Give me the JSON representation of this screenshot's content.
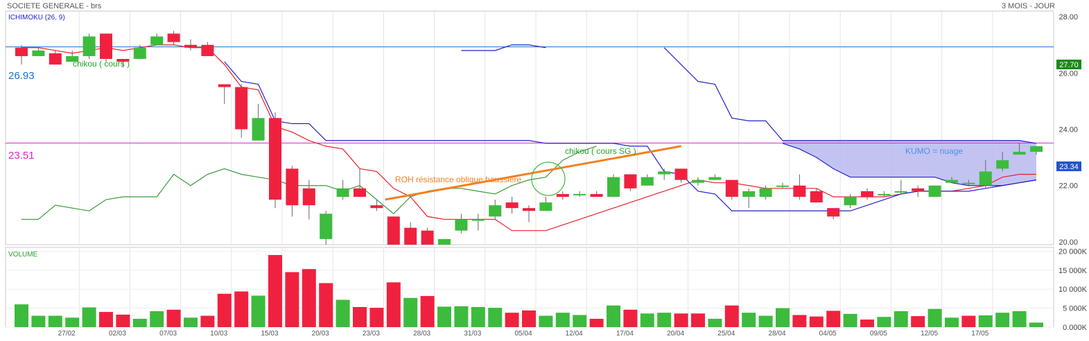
{
  "header": {
    "title": "SOCIETE GENERALE - brs",
    "period": "3 MOIS - JOUR"
  },
  "indicator_label": "ICHIMOKU (26, 9)",
  "volume_label": "VOLUME",
  "colors": {
    "up": "#3dbb3d",
    "down": "#f0213f",
    "tenkan": "#e8202a",
    "kijun": "#2222cc",
    "chikou": "#3a9a3a",
    "kumo_fill": "#b8b8f0",
    "resistance": "#f28022",
    "level_upper": "#1a6fd0",
    "level_lower": "#e020d0",
    "last_price_bg": "#1a8a1a",
    "cross_price_bg": "#2255cc"
  },
  "annotations": {
    "chikou_cours": "chikou  ( cours )",
    "chikou_cours_sg": "chikou ( cours SG  )",
    "roh": "ROH résistance oblique haussière",
    "kumo": "KUMO  = nuage",
    "level_upper": "26.93",
    "level_lower": "23.51",
    "last_price": "27.70",
    "current_price": "23.34"
  },
  "chart_data": [
    {
      "type": "candlestick",
      "title": "ICHIMOKU (26, 9)",
      "ylim": [
        19.9,
        28.2
      ],
      "y_ticks": [
        "28.00",
        "26.00",
        "24.00",
        "22.00",
        "20.00"
      ],
      "y_tick_values": [
        28,
        26,
        24,
        22,
        20
      ],
      "x_tick_labels": [
        "27/02",
        "02/03",
        "07/03",
        "10/03",
        "15/03",
        "20/03",
        "23/03",
        "28/03",
        "31/03",
        "05/04",
        "12/04",
        "17/04",
        "20/04",
        "25/04",
        "28/04",
        "04/05",
        "09/05",
        "12/05",
        "17/05"
      ],
      "x_tick_index": [
        3,
        6,
        9,
        12,
        15,
        18,
        21,
        24,
        27,
        30,
        33,
        36,
        39,
        42,
        45,
        48,
        51,
        54,
        57
      ],
      "candles": [
        {
          "o": 26.9,
          "h": 27.0,
          "l": 26.3,
          "c": 26.6
        },
        {
          "o": 26.6,
          "h": 26.9,
          "l": 26.6,
          "c": 26.8
        },
        {
          "o": 26.7,
          "h": 26.8,
          "l": 26.3,
          "c": 26.3
        },
        {
          "o": 26.4,
          "h": 26.8,
          "l": 26.4,
          "c": 26.6
        },
        {
          "o": 26.6,
          "h": 27.4,
          "l": 26.5,
          "c": 27.3
        },
        {
          "o": 27.4,
          "h": 27.4,
          "l": 26.4,
          "c": 26.5
        },
        {
          "o": 26.5,
          "h": 26.5,
          "l": 26.2,
          "c": 26.4
        },
        {
          "o": 26.5,
          "h": 27.0,
          "l": 26.5,
          "c": 26.9
        },
        {
          "o": 27.0,
          "h": 27.4,
          "l": 27.0,
          "c": 27.3
        },
        {
          "o": 27.4,
          "h": 27.5,
          "l": 27.0,
          "c": 27.1
        },
        {
          "o": 27.0,
          "h": 27.2,
          "l": 26.8,
          "c": 26.9
        },
        {
          "o": 27.0,
          "h": 27.1,
          "l": 26.6,
          "c": 26.6
        },
        {
          "o": 25.6,
          "h": 25.6,
          "l": 24.9,
          "c": 25.5
        },
        {
          "o": 25.5,
          "h": 25.6,
          "l": 23.7,
          "c": 24.0
        },
        {
          "o": 23.6,
          "h": 24.9,
          "l": 23.6,
          "c": 24.4
        },
        {
          "o": 24.4,
          "h": 24.6,
          "l": 21.2,
          "c": 21.5
        },
        {
          "o": 22.6,
          "h": 22.7,
          "l": 20.9,
          "c": 21.3
        },
        {
          "o": 21.9,
          "h": 22.2,
          "l": 20.8,
          "c": 21.3
        },
        {
          "o": 20.1,
          "h": 21.1,
          "l": 19.9,
          "c": 21.0
        },
        {
          "o": 21.6,
          "h": 22.2,
          "l": 21.5,
          "c": 21.9
        },
        {
          "o": 21.9,
          "h": 22.6,
          "l": 21.6,
          "c": 21.6
        },
        {
          "o": 21.3,
          "h": 21.5,
          "l": 21.1,
          "c": 21.2
        },
        {
          "o": 20.9,
          "h": 20.9,
          "l": 19.9,
          "c": 19.9
        },
        {
          "o": 20.5,
          "h": 20.7,
          "l": 19.9,
          "c": 19.9
        },
        {
          "o": 20.4,
          "h": 20.5,
          "l": 19.9,
          "c": 19.9
        },
        {
          "o": 19.9,
          "h": 20.1,
          "l": 19.9,
          "c": 20.1
        },
        {
          "o": 20.4,
          "h": 21.0,
          "l": 20.3,
          "c": 20.8
        },
        {
          "o": 20.8,
          "h": 21.0,
          "l": 20.4,
          "c": 20.8
        },
        {
          "o": 20.9,
          "h": 21.5,
          "l": 20.8,
          "c": 21.3
        },
        {
          "o": 21.4,
          "h": 21.6,
          "l": 21.0,
          "c": 21.2
        },
        {
          "o": 21.2,
          "h": 21.3,
          "l": 20.7,
          "c": 21.1
        },
        {
          "o": 21.1,
          "h": 21.6,
          "l": 21.1,
          "c": 21.4
        },
        {
          "o": 21.7,
          "h": 21.8,
          "l": 21.5,
          "c": 21.6
        },
        {
          "o": 21.7,
          "h": 21.8,
          "l": 21.6,
          "c": 21.7
        },
        {
          "o": 21.7,
          "h": 21.8,
          "l": 21.6,
          "c": 21.6
        },
        {
          "o": 21.6,
          "h": 22.4,
          "l": 21.6,
          "c": 22.3
        },
        {
          "o": 22.4,
          "h": 22.4,
          "l": 21.8,
          "c": 21.9
        },
        {
          "o": 22.0,
          "h": 22.4,
          "l": 22.0,
          "c": 22.3
        },
        {
          "o": 22.4,
          "h": 22.6,
          "l": 22.2,
          "c": 22.5
        },
        {
          "o": 22.6,
          "h": 22.6,
          "l": 22.1,
          "c": 22.2
        },
        {
          "o": 22.1,
          "h": 22.3,
          "l": 22.0,
          "c": 22.2
        },
        {
          "o": 22.2,
          "h": 22.4,
          "l": 22.2,
          "c": 22.3
        },
        {
          "o": 22.2,
          "h": 22.2,
          "l": 21.5,
          "c": 21.6
        },
        {
          "o": 21.6,
          "h": 21.9,
          "l": 21.2,
          "c": 21.8
        },
        {
          "o": 21.6,
          "h": 22.0,
          "l": 21.5,
          "c": 21.9
        },
        {
          "o": 22.0,
          "h": 22.1,
          "l": 21.9,
          "c": 22.0
        },
        {
          "o": 22.0,
          "h": 22.4,
          "l": 21.5,
          "c": 21.6
        },
        {
          "o": 21.8,
          "h": 21.9,
          "l": 21.4,
          "c": 21.4
        },
        {
          "o": 21.2,
          "h": 21.2,
          "l": 20.8,
          "c": 20.9
        },
        {
          "o": 21.3,
          "h": 21.7,
          "l": 21.2,
          "c": 21.6
        },
        {
          "o": 21.8,
          "h": 21.9,
          "l": 21.5,
          "c": 21.6
        },
        {
          "o": 21.7,
          "h": 21.8,
          "l": 21.6,
          "c": 21.7
        },
        {
          "o": 21.8,
          "h": 22.2,
          "l": 21.7,
          "c": 21.8
        },
        {
          "o": 21.9,
          "h": 22.0,
          "l": 21.6,
          "c": 21.8
        },
        {
          "o": 21.6,
          "h": 22.0,
          "l": 21.6,
          "c": 22.0
        },
        {
          "o": 22.1,
          "h": 22.3,
          "l": 22.1,
          "c": 22.2
        },
        {
          "o": 22.1,
          "h": 22.2,
          "l": 22.0,
          "c": 22.1
        },
        {
          "o": 22.0,
          "h": 22.9,
          "l": 21.9,
          "c": 22.5
        },
        {
          "o": 22.6,
          "h": 23.2,
          "l": 22.5,
          "c": 22.9
        },
        {
          "o": 23.1,
          "h": 23.5,
          "l": 23.1,
          "c": 23.2
        },
        {
          "o": 23.2,
          "h": 23.4,
          "l": 23.1,
          "c": 23.4
        }
      ],
      "series": [
        {
          "name": "tenkan",
          "values": [
            26.9,
            26.9,
            26.8,
            26.7,
            26.8,
            26.9,
            26.8,
            26.9,
            27.0,
            27.0,
            26.9,
            26.9,
            26.3,
            25.5,
            25.4,
            24.1,
            23.9,
            23.6,
            23.4,
            23.3,
            22.6,
            22.5,
            21.9,
            21.6,
            20.9,
            20.8,
            20.8,
            20.8,
            20.8,
            20.4,
            20.4,
            20.4,
            20.6,
            20.8,
            21.0,
            21.2,
            21.4,
            21.6,
            21.8,
            22.0,
            22.2,
            22.1,
            22.1,
            22.0,
            21.9,
            21.9,
            21.9,
            21.9,
            21.6,
            21.6,
            21.6,
            21.6,
            21.7,
            21.8,
            21.8,
            21.8,
            21.9,
            22.0,
            22.3,
            22.4,
            22.4
          ]
        },
        {
          "name": "kijun",
          "values": [
            null,
            null,
            null,
            null,
            null,
            null,
            null,
            null,
            null,
            null,
            null,
            null,
            26.4,
            25.7,
            25.6,
            24.3,
            24.2,
            24.2,
            23.6,
            23.6,
            23.6,
            23.6,
            23.6,
            23.6,
            23.6,
            23.6,
            23.6,
            23.6,
            23.6,
            23.6,
            23.6,
            23.5,
            23.5,
            23.5,
            23.5,
            23.5,
            23.4,
            23.4,
            22.5,
            22.4,
            21.8,
            21.7,
            21.1,
            21.1,
            21.1,
            21.1,
            21.1,
            21.1,
            21.1,
            21.1,
            21.3,
            21.5,
            21.7,
            21.8,
            21.8,
            21.8,
            21.8,
            21.9,
            22.0,
            22.1,
            22.2
          ]
        },
        {
          "name": "chikou",
          "values": [
            20.8,
            20.8,
            21.3,
            21.2,
            21.1,
            21.5,
            21.6,
            21.6,
            21.6,
            22.4,
            22.0,
            22.4,
            22.6,
            22.4,
            22.3,
            22.2,
            22.0,
            22.0,
            22.0,
            21.8,
            22.0,
            21.5,
            21.0,
            21.6,
            21.8,
            21.9,
            21.9,
            21.8,
            21.7,
            22.0,
            22.2,
            22.3,
            22.9,
            23.2,
            23.4
          ]
        },
        {
          "name": "ssa",
          "values": [
            null,
            null,
            null,
            null,
            null,
            null,
            null,
            null,
            null,
            null,
            null,
            null,
            null,
            null,
            null,
            null,
            null,
            null,
            null,
            null,
            null,
            null,
            null,
            null,
            null,
            null,
            26.8,
            26.8,
            26.8,
            27.0,
            27.0,
            26.9,
            null,
            null,
            null,
            null,
            null,
            null,
            26.9,
            26.3,
            25.7,
            25.6,
            24.4,
            24.3,
            24.3,
            23.6,
            23.6,
            23.6,
            23.6,
            23.6,
            23.6,
            23.6,
            23.6,
            23.6,
            23.6,
            23.6,
            23.6,
            23.6,
            23.6,
            23.6,
            23.5
          ]
        },
        {
          "name": "ssb",
          "values": [
            null,
            null,
            null,
            null,
            null,
            null,
            null,
            null,
            null,
            null,
            null,
            null,
            null,
            null,
            null,
            null,
            null,
            null,
            null,
            null,
            null,
            null,
            null,
            null,
            null,
            null,
            null,
            null,
            null,
            null,
            null,
            null,
            null,
            null,
            null,
            null,
            null,
            null,
            null,
            null,
            null,
            null,
            null,
            null,
            null,
            23.5,
            23.3,
            23.0,
            22.6,
            22.3,
            22.3,
            22.3,
            22.3,
            22.3,
            22.3,
            22.1,
            22.0,
            22.0,
            22.0,
            22.1,
            22.2
          ]
        }
      ],
      "levels": [
        26.93,
        23.51
      ],
      "resistance_line": {
        "from": [
          21.5,
          21.5
        ],
        "to": [
          39,
          23.4
        ]
      }
    },
    {
      "type": "bar",
      "title": "VOLUME",
      "ylim": [
        0,
        21000
      ],
      "y_ticks": [
        "20 000K",
        "15 000K",
        "10 000K",
        "5 000K",
        "0.000K"
      ],
      "y_tick_values": [
        20000,
        15000,
        10000,
        5000,
        0
      ],
      "values": [
        6000,
        3000,
        3000,
        2500,
        5200,
        4000,
        3300,
        2200,
        4200,
        4600,
        2500,
        3000,
        8800,
        9400,
        8300,
        19000,
        14500,
        15300,
        11600,
        7200,
        5300,
        5100,
        11800,
        7700,
        8200,
        5400,
        5500,
        5300,
        5100,
        3800,
        4400,
        3000,
        3800,
        3200,
        2200,
        5700,
        4600,
        3600,
        3800,
        3600,
        3600,
        2200,
        5700,
        3800,
        3000,
        5000,
        3200,
        2800,
        4300,
        3500,
        2000,
        2700,
        4200,
        2900,
        4800,
        2500,
        3000,
        3100,
        3800,
        4200,
        1200
      ],
      "colors": [
        "up",
        "up",
        "up",
        "up",
        "up",
        "down",
        "down",
        "up",
        "up",
        "down",
        "up",
        "down",
        "down",
        "down",
        "up",
        "down",
        "down",
        "down",
        "down",
        "up",
        "down",
        "down",
        "down",
        "up",
        "down",
        "up",
        "up",
        "up",
        "up",
        "down",
        "down",
        "up",
        "up",
        "up",
        "down",
        "up",
        "down",
        "up",
        "up",
        "down",
        "down",
        "up",
        "down",
        "up",
        "up",
        "up",
        "down",
        "down",
        "down",
        "up",
        "down",
        "up",
        "up",
        "down",
        "up",
        "up",
        "down",
        "up",
        "up",
        "up",
        "up"
      ]
    }
  ]
}
